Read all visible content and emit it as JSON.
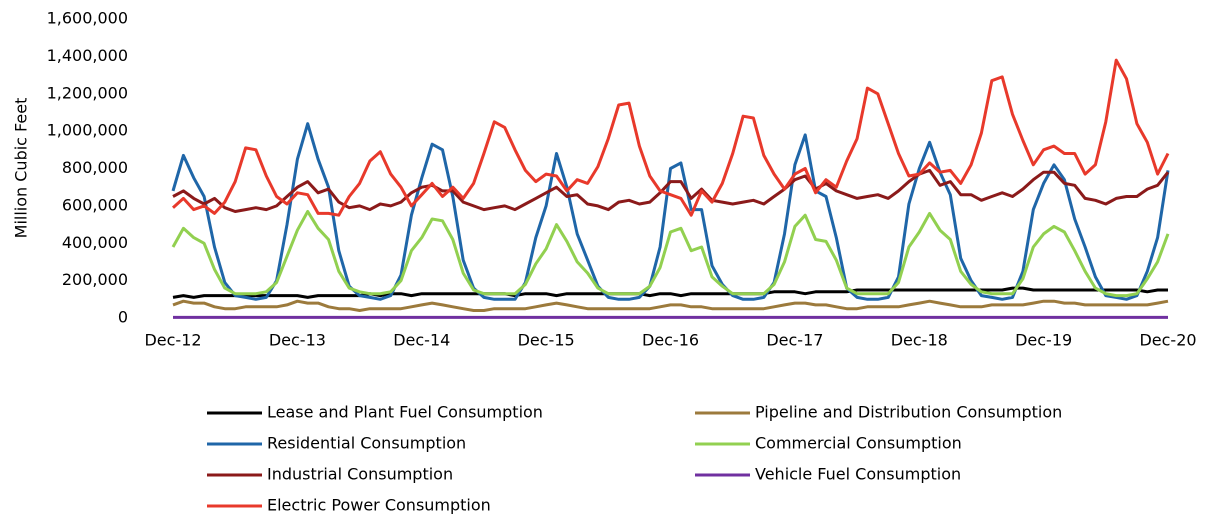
{
  "chart_data": {
    "type": "line",
    "y_label": "Million Cubic Feet",
    "categories": [
      "Dec-12",
      null,
      null,
      null,
      null,
      null,
      null,
      null,
      null,
      null,
      null,
      null,
      "Dec-13",
      null,
      null,
      null,
      null,
      null,
      null,
      null,
      null,
      null,
      null,
      null,
      "Dec-14",
      null,
      null,
      null,
      null,
      null,
      null,
      null,
      null,
      null,
      null,
      null,
      "Dec-15",
      null,
      null,
      null,
      null,
      null,
      null,
      null,
      null,
      null,
      null,
      null,
      "Dec-16",
      null,
      null,
      null,
      null,
      null,
      null,
      null,
      null,
      null,
      null,
      null,
      "Dec-17",
      null,
      null,
      null,
      null,
      null,
      null,
      null,
      null,
      null,
      null,
      null,
      "Dec-18",
      null,
      null,
      null,
      null,
      null,
      null,
      null,
      null,
      null,
      null,
      null,
      "Dec-19",
      null,
      null,
      null,
      null,
      null,
      null,
      null,
      null,
      null,
      null,
      null,
      "Dec-20"
    ],
    "ylim": [
      0,
      1600000
    ],
    "yticks": [
      0,
      {
        "value": 200000,
        "label": "200,000"
      },
      {
        "value": 400000,
        "label": "400,000"
      },
      {
        "value": 600000,
        "label": "600,000"
      },
      {
        "value": 800000,
        "label": "800,000"
      },
      {
        "value": 1000000,
        "label": "1,000,000"
      },
      {
        "value": 1200000,
        "label": "1,200,000"
      },
      {
        "value": 1400000,
        "label": "1,400,000"
      },
      {
        "value": 1600000,
        "label": "1,600,000"
      }
    ],
    "grid": false,
    "legend": "bottom",
    "series": [
      {
        "name": "Lease and Plant Fuel Consumption",
        "color": "#000000",
        "values": [
          110000,
          120000,
          110000,
          120000,
          120000,
          120000,
          120000,
          120000,
          120000,
          120000,
          120000,
          120000,
          120000,
          110000,
          120000,
          120000,
          120000,
          120000,
          120000,
          130000,
          120000,
          130000,
          130000,
          120000,
          130000,
          130000,
          130000,
          130000,
          130000,
          130000,
          130000,
          130000,
          130000,
          120000,
          130000,
          130000,
          130000,
          120000,
          130000,
          130000,
          130000,
          130000,
          130000,
          130000,
          130000,
          130000,
          120000,
          130000,
          130000,
          120000,
          130000,
          130000,
          130000,
          130000,
          130000,
          130000,
          130000,
          130000,
          140000,
          140000,
          140000,
          130000,
          140000,
          140000,
          140000,
          140000,
          150000,
          150000,
          150000,
          150000,
          150000,
          150000,
          150000,
          150000,
          150000,
          150000,
          150000,
          150000,
          150000,
          150000,
          150000,
          160000,
          160000,
          150000,
          150000,
          150000,
          150000,
          150000,
          150000,
          150000,
          150000,
          150000,
          150000,
          150000,
          140000,
          150000,
          150000
        ]
      },
      {
        "name": "Pipeline and Distribution Consumption",
        "color": "#9c7a3c",
        "values": [
          70000,
          90000,
          80000,
          80000,
          60000,
          50000,
          50000,
          60000,
          60000,
          60000,
          60000,
          70000,
          90000,
          80000,
          80000,
          60000,
          50000,
          50000,
          40000,
          50000,
          50000,
          50000,
          50000,
          60000,
          70000,
          80000,
          70000,
          60000,
          50000,
          40000,
          40000,
          50000,
          50000,
          50000,
          50000,
          60000,
          70000,
          80000,
          70000,
          60000,
          50000,
          50000,
          50000,
          50000,
          50000,
          50000,
          50000,
          60000,
          70000,
          70000,
          60000,
          60000,
          50000,
          50000,
          50000,
          50000,
          50000,
          50000,
          60000,
          70000,
          80000,
          80000,
          70000,
          70000,
          60000,
          50000,
          50000,
          60000,
          60000,
          60000,
          60000,
          70000,
          80000,
          90000,
          80000,
          70000,
          60000,
          60000,
          60000,
          70000,
          70000,
          70000,
          70000,
          80000,
          90000,
          90000,
          80000,
          80000,
          70000,
          70000,
          70000,
          70000,
          70000,
          70000,
          70000,
          80000,
          90000
        ]
      },
      {
        "name": "Residential Consumption",
        "color": "#1f66a8",
        "values": [
          680000,
          870000,
          750000,
          650000,
          380000,
          190000,
          120000,
          110000,
          100000,
          110000,
          200000,
          500000,
          850000,
          1040000,
          850000,
          700000,
          360000,
          170000,
          120000,
          110000,
          100000,
          120000,
          230000,
          550000,
          750000,
          930000,
          900000,
          650000,
          310000,
          160000,
          110000,
          100000,
          100000,
          100000,
          190000,
          430000,
          600000,
          880000,
          700000,
          450000,
          310000,
          170000,
          110000,
          100000,
          100000,
          110000,
          170000,
          380000,
          800000,
          830000,
          580000,
          580000,
          280000,
          180000,
          120000,
          100000,
          100000,
          110000,
          190000,
          450000,
          820000,
          980000,
          680000,
          650000,
          430000,
          160000,
          110000,
          100000,
          100000,
          110000,
          220000,
          610000,
          800000,
          940000,
          780000,
          660000,
          320000,
          200000,
          120000,
          110000,
          100000,
          110000,
          250000,
          580000,
          720000,
          820000,
          740000,
          530000,
          380000,
          220000,
          120000,
          110000,
          100000,
          120000,
          250000,
          430000,
          790000
        ]
      },
      {
        "name": "Commercial Consumption",
        "color": "#92d050",
        "values": [
          380000,
          480000,
          430000,
          400000,
          260000,
          160000,
          130000,
          130000,
          130000,
          140000,
          190000,
          330000,
          470000,
          570000,
          480000,
          420000,
          250000,
          160000,
          140000,
          130000,
          130000,
          140000,
          200000,
          360000,
          430000,
          530000,
          520000,
          420000,
          240000,
          150000,
          130000,
          130000,
          130000,
          130000,
          180000,
          290000,
          370000,
          500000,
          410000,
          300000,
          240000,
          160000,
          130000,
          130000,
          130000,
          130000,
          170000,
          270000,
          460000,
          480000,
          360000,
          380000,
          220000,
          170000,
          130000,
          130000,
          130000,
          130000,
          180000,
          300000,
          490000,
          550000,
          420000,
          410000,
          310000,
          160000,
          130000,
          130000,
          130000,
          130000,
          190000,
          380000,
          460000,
          560000,
          470000,
          420000,
          250000,
          180000,
          140000,
          130000,
          130000,
          130000,
          210000,
          380000,
          450000,
          490000,
          460000,
          360000,
          250000,
          160000,
          130000,
          120000,
          120000,
          130000,
          210000,
          300000,
          450000
        ]
      },
      {
        "name": "Industrial Consumption",
        "color": "#8b1a1a",
        "values": [
          650000,
          680000,
          640000,
          610000,
          640000,
          590000,
          570000,
          580000,
          590000,
          580000,
          600000,
          650000,
          700000,
          730000,
          670000,
          690000,
          620000,
          590000,
          600000,
          580000,
          610000,
          600000,
          620000,
          670000,
          700000,
          710000,
          680000,
          680000,
          620000,
          600000,
          580000,
          590000,
          600000,
          580000,
          610000,
          640000,
          670000,
          700000,
          650000,
          660000,
          610000,
          600000,
          580000,
          620000,
          630000,
          610000,
          620000,
          670000,
          730000,
          730000,
          640000,
          690000,
          630000,
          620000,
          610000,
          620000,
          630000,
          610000,
          650000,
          690000,
          740000,
          760000,
          690000,
          720000,
          680000,
          660000,
          640000,
          650000,
          660000,
          640000,
          680000,
          730000,
          770000,
          790000,
          710000,
          730000,
          660000,
          660000,
          630000,
          650000,
          670000,
          650000,
          690000,
          740000,
          780000,
          780000,
          720000,
          710000,
          640000,
          630000,
          610000,
          640000,
          650000,
          650000,
          690000,
          710000,
          780000
        ]
      },
      {
        "name": "Vehicle Fuel Consumption",
        "color": "#7030a0",
        "values": [
          3000,
          3000,
          3000,
          3000,
          3000,
          3000,
          3000,
          3000,
          3000,
          3000,
          3000,
          3000,
          3000,
          3000,
          3000,
          3000,
          3000,
          3000,
          3000,
          3000,
          3000,
          3000,
          3000,
          3000,
          3000,
          3000,
          3000,
          3000,
          3000,
          3000,
          3000,
          3000,
          3000,
          3000,
          3000,
          3000,
          3000,
          3000,
          3000,
          3000,
          3000,
          3000,
          3000,
          3000,
          3000,
          3000,
          3000,
          3000,
          3000,
          3000,
          3000,
          3000,
          3000,
          3000,
          3000,
          3000,
          3000,
          3000,
          3000,
          3000,
          3000,
          3000,
          3000,
          3000,
          3000,
          3000,
          3000,
          3000,
          3000,
          3000,
          3000,
          3000,
          3000,
          3000,
          3000,
          3000,
          3000,
          3000,
          3000,
          3000,
          3000,
          3000,
          3000,
          3000,
          3000,
          3000,
          3000,
          3000,
          3000,
          3000,
          3000,
          3000,
          3000,
          3000,
          3000,
          3000,
          3000
        ]
      },
      {
        "name": "Electric Power Consumption",
        "color": "#e8392b",
        "values": [
          590000,
          640000,
          580000,
          600000,
          560000,
          620000,
          730000,
          910000,
          900000,
          760000,
          650000,
          610000,
          670000,
          660000,
          560000,
          560000,
          550000,
          650000,
          720000,
          840000,
          890000,
          770000,
          700000,
          600000,
          660000,
          720000,
          650000,
          700000,
          640000,
          720000,
          880000,
          1050000,
          1020000,
          900000,
          790000,
          730000,
          770000,
          760000,
          680000,
          740000,
          720000,
          810000,
          960000,
          1140000,
          1150000,
          920000,
          760000,
          680000,
          660000,
          640000,
          550000,
          680000,
          620000,
          720000,
          880000,
          1080000,
          1070000,
          870000,
          770000,
          690000,
          770000,
          800000,
          670000,
          740000,
          700000,
          840000,
          960000,
          1230000,
          1200000,
          1040000,
          880000,
          760000,
          770000,
          830000,
          780000,
          790000,
          720000,
          820000,
          990000,
          1270000,
          1290000,
          1090000,
          950000,
          820000,
          900000,
          920000,
          880000,
          880000,
          770000,
          820000,
          1050000,
          1380000,
          1280000,
          1040000,
          940000,
          770000,
          880000
        ]
      }
    ]
  }
}
